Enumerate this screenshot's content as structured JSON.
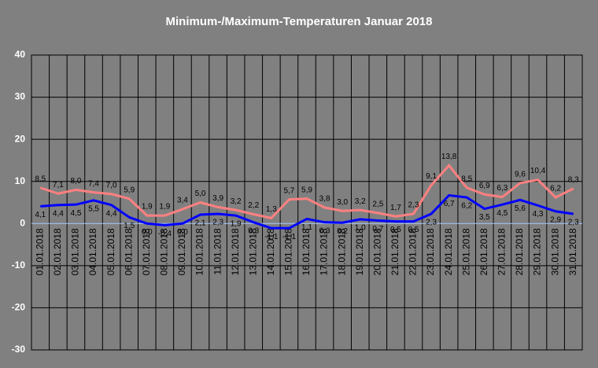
{
  "chart_data": {
    "type": "line",
    "title": "Minimum-/Maximum-Temperaturen Januar 2018",
    "categories": [
      "01.01.2018",
      "02.01.2018",
      "03.01.2018",
      "04.01.2018",
      "05.01.2018",
      "06.01.2018",
      "07.01.2018",
      "08.01.2018",
      "09.01.2018",
      "10.01.2018",
      "11.01.2018",
      "12.01.2018",
      "13.01.2018",
      "14.01.2018",
      "15.01.2018",
      "16.01.2018",
      "17.01.2018",
      "18.01.2018",
      "19.01.2018",
      "20.01.2018",
      "21.01.2018",
      "22.01.2018",
      "23.01.2018",
      "24.01.2018",
      "25.01.2018",
      "26.01.2018",
      "27.01.2018",
      "28.01.2018",
      "29.01.2018",
      "30.01.2018",
      "31.01.2018"
    ],
    "series": [
      {
        "color": "#ff8080",
        "values": [
          8.5,
          7.1,
          8.0,
          7.4,
          7.0,
          5.9,
          1.9,
          1.9,
          3.4,
          5.0,
          3.9,
          3.2,
          2.2,
          1.3,
          5.7,
          5.9,
          3.8,
          3.0,
          3.2,
          2.5,
          1.7,
          2.3,
          9.1,
          13.8,
          8.5,
          6.9,
          6.3,
          9.6,
          10.4,
          6.2,
          8.3
        ],
        "value_labels": [
          "8,5",
          "7,1",
          "8,0",
          "7,4",
          "7,0",
          "5,9",
          "1,9",
          "1,9",
          "3,4",
          "5,0",
          "3,9",
          "3,2",
          "2,2",
          "1,3",
          "5,7",
          "5,9",
          "3,8",
          "3,0",
          "3,2",
          "2,5",
          "1,7",
          "2,3",
          "9,1",
          "13,8",
          "8,5",
          "6,9",
          "6,3",
          "9,6",
          "10,4",
          "6,2",
          "8,3"
        ]
      },
      {
        "color": "#0000ff",
        "values": [
          4.1,
          4.4,
          4.5,
          5.5,
          4.4,
          1.5,
          0.0,
          -0.4,
          0.0,
          2.1,
          2.3,
          1.9,
          0.3,
          -1.1,
          -1.1,
          1.1,
          0.3,
          0.2,
          1.0,
          0.7,
          0.5,
          0.5,
          2.3,
          6.7,
          6.2,
          3.5,
          4.5,
          5.6,
          4.3,
          2.9,
          2.3
        ],
        "value_labels": [
          "4,1",
          "4,4",
          "4,5",
          "5,5",
          "4,4",
          "1,5",
          "0,0",
          "-0,4",
          "0,0",
          "2,1",
          "2,3",
          "1,9",
          "0,3",
          "-1,1",
          "-1,1",
          "1,1",
          "0,3",
          "0,2",
          "1,0",
          "0,7",
          "0,5",
          "0,5",
          "2,3",
          "6,7",
          "6,2",
          "3,5",
          "4,5",
          "5,6",
          "4,3",
          "2,9",
          "2,3"
        ]
      }
    ],
    "ylim": [
      -30,
      40
    ],
    "yticks": [
      -30,
      -20,
      -10,
      0,
      10,
      20,
      30,
      40
    ],
    "grid": true
  }
}
